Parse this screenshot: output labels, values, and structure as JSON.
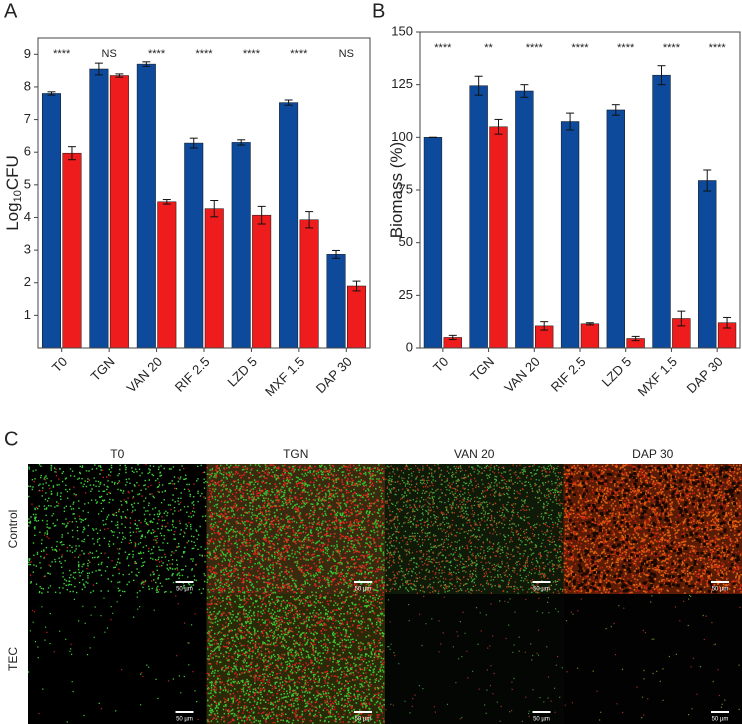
{
  "chart_data": [
    {
      "type": "bar",
      "panel": "A",
      "y_label": {
        "text": "Log",
        "sub": "10",
        "tail": "CFU"
      },
      "categories": [
        "T0",
        "TGN",
        "VAN 20",
        "RIF 2.5",
        "LZD 5",
        "MXF 1.5",
        "DAP 30"
      ],
      "series": [
        {
          "color": "#0d4a9b",
          "values": [
            7.8,
            8.55,
            8.7,
            6.28,
            6.3,
            7.52,
            2.87
          ],
          "errors": [
            0.05,
            0.18,
            0.07,
            0.15,
            0.08,
            0.08,
            0.12
          ]
        },
        {
          "color": "#ee1c1c",
          "values": [
            5.97,
            8.35,
            4.48,
            4.27,
            4.07,
            3.93,
            1.9
          ],
          "errors": [
            0.2,
            0.05,
            0.07,
            0.25,
            0.27,
            0.25,
            0.15
          ]
        }
      ],
      "annotations": [
        "****",
        "NS",
        "****",
        "****",
        "****",
        "****",
        "NS"
      ],
      "ylim": [
        0,
        9.5
      ],
      "yticks": [
        1,
        2,
        3,
        4,
        5,
        6,
        7,
        8,
        9
      ]
    },
    {
      "type": "bar",
      "panel": "B",
      "y_label": {
        "text": "Biomass (%)"
      },
      "categories": [
        "T0",
        "TGN",
        "VAN 20",
        "RIF 2.5",
        "LZD 5",
        "MXF 1.5",
        "DAP 30"
      ],
      "series": [
        {
          "color": "#0d4a9b",
          "values": [
            100,
            124.5,
            122,
            107.5,
            113,
            129.5,
            79.5
          ],
          "errors": [
            0,
            4.5,
            3,
            4,
            2.5,
            4.5,
            5
          ]
        },
        {
          "color": "#ee1c1c",
          "values": [
            5,
            105,
            10.5,
            11.5,
            4.5,
            14,
            12
          ],
          "errors": [
            1,
            3.5,
            2,
            0.5,
            1,
            3.5,
            2.5
          ]
        }
      ],
      "annotations": [
        "****",
        "**",
        "****",
        "****",
        "****",
        "****",
        "****"
      ],
      "ylim": [
        0,
        150
      ],
      "yticks": [
        0,
        25,
        50,
        75,
        100,
        125,
        150
      ]
    }
  ],
  "panel_c": {
    "panel": "C",
    "columns": [
      "T0",
      "TGN",
      "VAN 20",
      "DAP 30"
    ],
    "rows": [
      {
        "label": "Control",
        "scale_bars": [
          "50 µm",
          "50 µm",
          "50 µm",
          "50 µm"
        ]
      },
      {
        "label": "TEC",
        "scale_bars": [
          "50 µm",
          "50 µm",
          "50 µm",
          "50 µm"
        ]
      }
    ]
  }
}
